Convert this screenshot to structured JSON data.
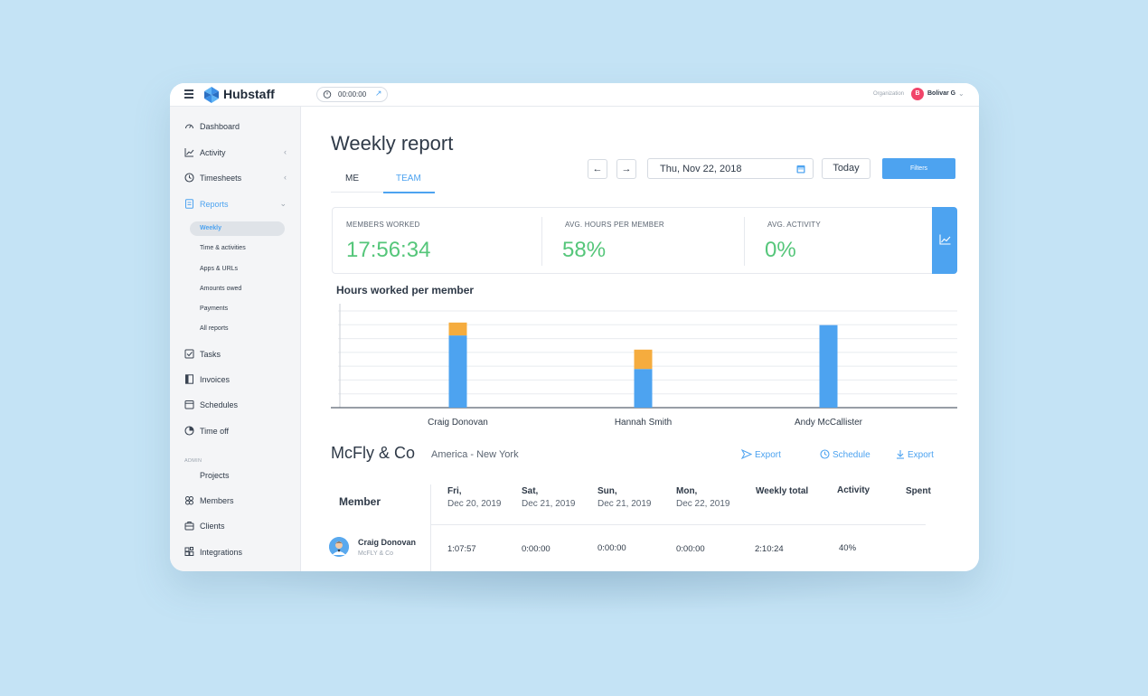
{
  "app": {
    "brand": "Hubstaff"
  },
  "topbar": {
    "timer": "00:00:00",
    "org_label": "Organization",
    "org_avatar_letter": "B",
    "user": "Bolivar G"
  },
  "sidebar": {
    "items": [
      {
        "label": "Dashboard",
        "icon": "dashboard-icon"
      },
      {
        "label": "Activity",
        "icon": "activity-icon"
      },
      {
        "label": "Timesheets",
        "icon": "clock-icon"
      },
      {
        "label": "Reports",
        "icon": "reports-icon"
      },
      {
        "label": "Tasks",
        "icon": "tasks-icon"
      },
      {
        "label": "Invoices",
        "icon": "invoices-icon"
      },
      {
        "label": "Schedules",
        "icon": "calendar-icon"
      },
      {
        "label": "Time off",
        "icon": "timeoff-icon"
      },
      {
        "label": "Projects",
        "icon": ""
      },
      {
        "label": "Members",
        "icon": "members-icon"
      },
      {
        "label": "Clients",
        "icon": "clients-icon"
      },
      {
        "label": "Integrations",
        "icon": "integrations-icon"
      }
    ],
    "report_sub": [
      "Weekly",
      "Time & activities",
      "Apps & URLs",
      "Amounts owed",
      "Payments",
      "All reports"
    ],
    "admin_label": "ADMIN",
    "active_item": "Reports",
    "active_sub": "Weekly"
  },
  "main": {
    "title": "Weekly report",
    "tabs": [
      "ME",
      "TEAM"
    ],
    "active_tab": "TEAM",
    "date": "Thu, Nov 22, 2018",
    "today_label": "Today",
    "filters_label": "Filters",
    "stats": [
      {
        "label": "MEMBERS WORKED",
        "value": "17:56:34"
      },
      {
        "label": "AVG. HOURS PER MEMBER",
        "value": "58%"
      },
      {
        "label": "AVG. ACTIVITY",
        "value": "0%"
      }
    ],
    "chart_title": "Hours worked per member",
    "company": "McFly & Co",
    "timezone": "America - New York",
    "actions": [
      "Export",
      "Schedule",
      "Export"
    ],
    "table": {
      "member_header": "Member",
      "columns": [
        {
          "day": "Fri,",
          "date": "Dec 20, 2019"
        },
        {
          "day": "Sat,",
          "date": "Dec 21, 2019"
        },
        {
          "day": "Sun,",
          "date": "Dec 21, 2019"
        },
        {
          "day": "Mon,",
          "date": "Dec 22, 2019"
        }
      ],
      "weekly_total": "Weekly total",
      "activity": "Activity",
      "spent": "Spent",
      "rows": [
        {
          "name": "Craig Donovan",
          "org": "McFLY & Co",
          "values": [
            "1:07:57",
            "0:00:00",
            "0:00:00",
            "0:00:00"
          ],
          "total": "2:10:24",
          "activity": "40%"
        }
      ]
    }
  },
  "colors": {
    "accent": "#4da3f0",
    "positive": "#55c67a",
    "secondary_bar": "#f5ac3e"
  },
  "chart_data": {
    "type": "bar",
    "stacked": true,
    "categories": [
      "Craig Donovan",
      "Hannah Smith",
      "Andy McCallister"
    ],
    "series": [
      {
        "values": [
          5.6,
          3.0,
          6.4
        ]
      },
      {
        "values": [
          1.0,
          1.5,
          0
        ]
      }
    ],
    "ylim": [
      0,
      7.5
    ],
    "grid": true
  }
}
